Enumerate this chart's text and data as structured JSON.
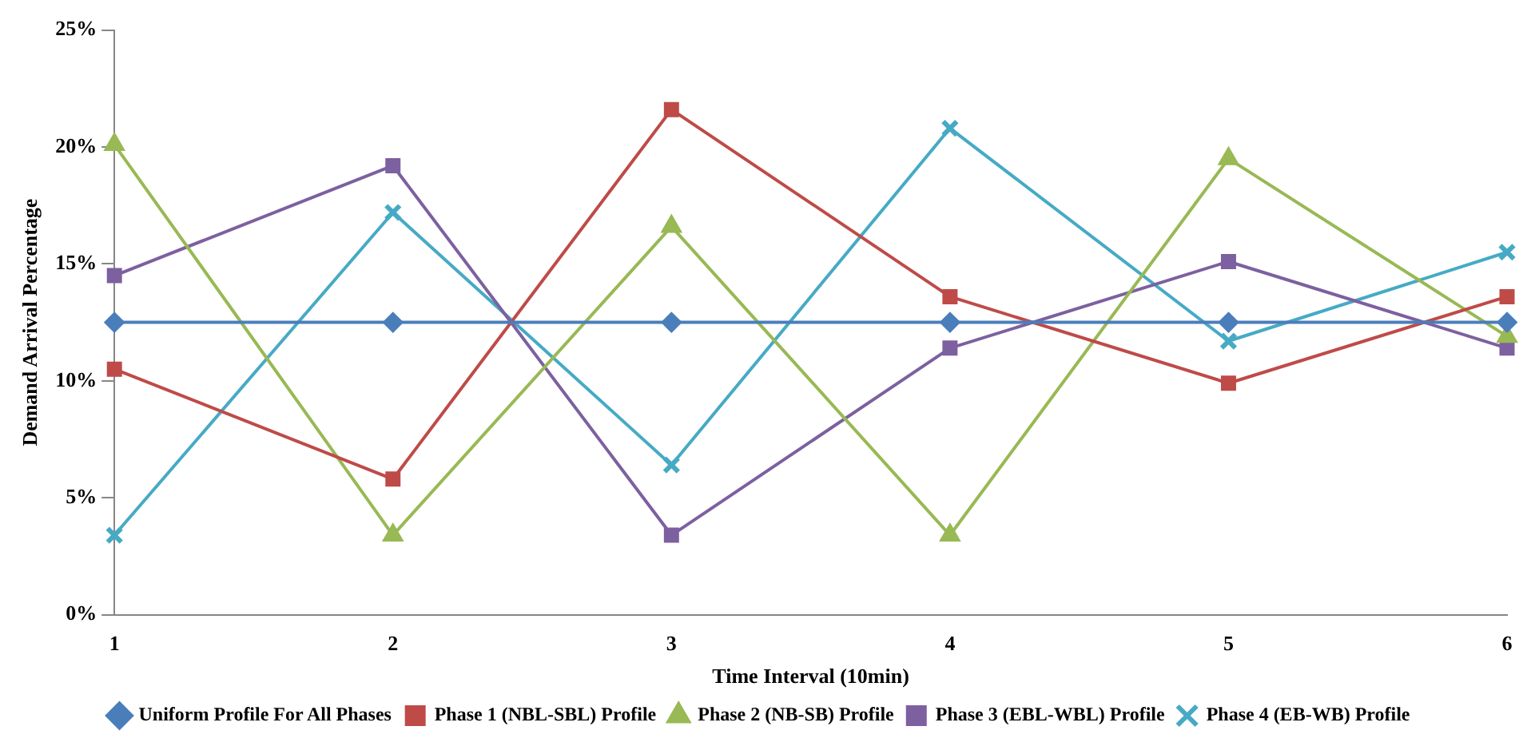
{
  "chart_data": {
    "type": "line",
    "xlabel": "Time Interval (10min)",
    "ylabel": "Demand Arrival Percentage",
    "categories": [
      "1",
      "2",
      "3",
      "4",
      "5",
      "6"
    ],
    "series": [
      {
        "name": "Uniform Profile For All Phases",
        "color": "#4a7ebb",
        "marker": "diamond",
        "values": [
          12.5,
          12.5,
          12.5,
          12.5,
          12.5,
          12.5
        ]
      },
      {
        "name": "Phase 1 (NBL-SBL) Profile",
        "color": "#be4b48",
        "marker": "square",
        "values": [
          10.5,
          5.8,
          21.6,
          13.6,
          9.9,
          13.6
        ]
      },
      {
        "name": "Phase 2 (NB-SB) Profile",
        "color": "#98b954",
        "marker": "triangle",
        "values": [
          20.1,
          3.4,
          16.6,
          3.4,
          19.5,
          11.9
        ]
      },
      {
        "name": "Phase 3 (EBL-WBL) Profile",
        "color": "#7d60a0",
        "marker": "square",
        "values": [
          14.5,
          19.2,
          3.4,
          11.4,
          15.1,
          11.4
        ]
      },
      {
        "name": "Phase 4 (EB-WB) Profile",
        "color": "#46aac5",
        "marker": "cross",
        "values": [
          3.4,
          17.2,
          6.4,
          20.8,
          11.7,
          15.5
        ]
      }
    ],
    "ylim": [
      0,
      25
    ],
    "yticks": [
      {
        "value": 0,
        "label": "0%"
      },
      {
        "value": 5,
        "label": "5%"
      },
      {
        "value": 10,
        "label": "10%"
      },
      {
        "value": 15,
        "label": "15%"
      },
      {
        "value": 20,
        "label": "20%"
      },
      {
        "value": 25,
        "label": "25%"
      }
    ],
    "grid": false,
    "legend": "bottom",
    "line_style": "solid"
  }
}
